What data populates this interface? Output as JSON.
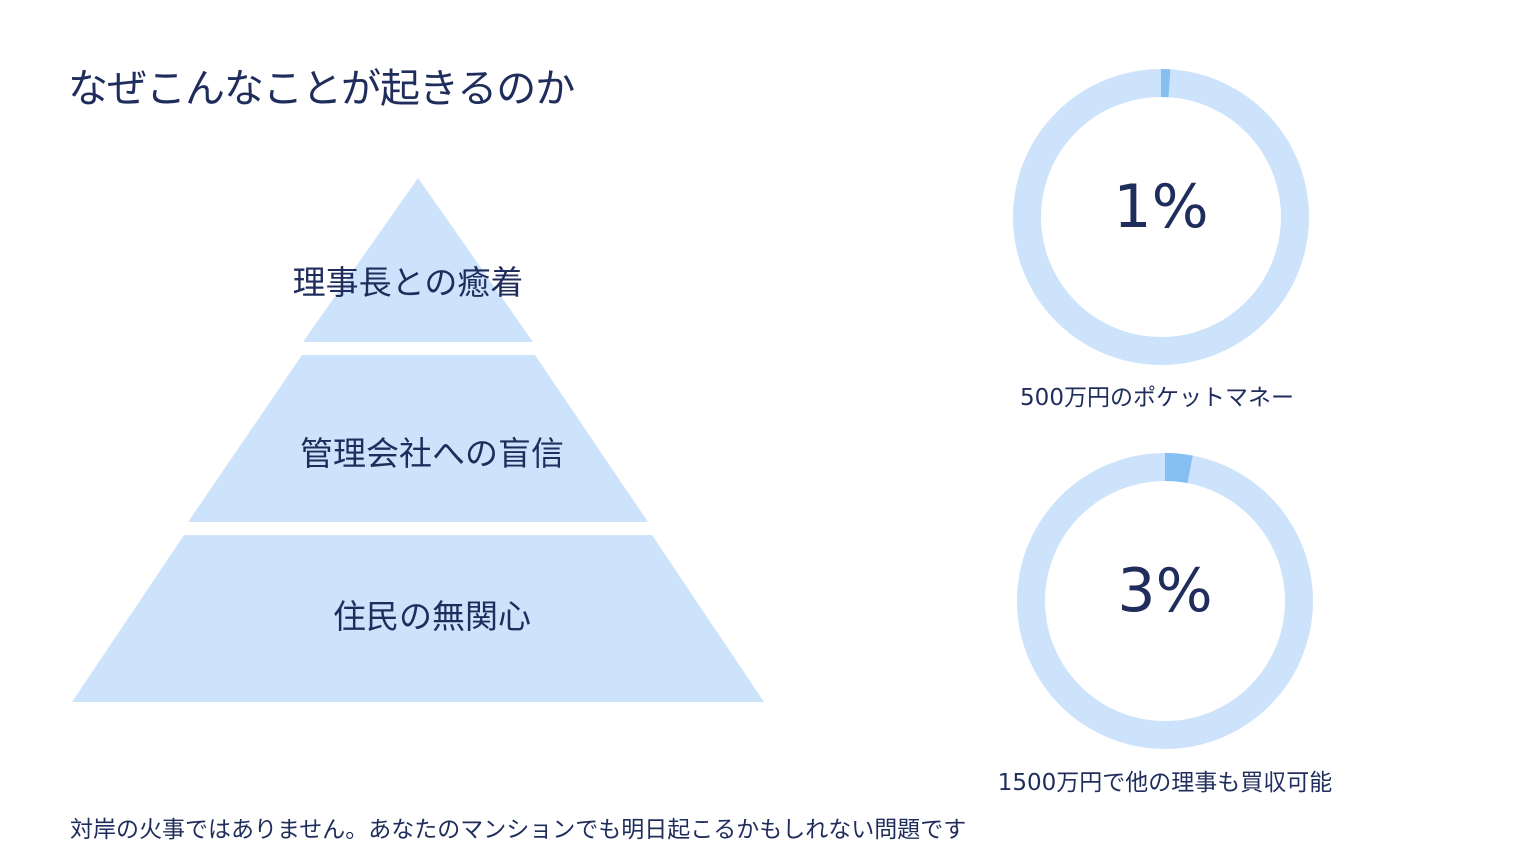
{
  "title": "なぜこんなことが起きるのか",
  "pyramid": {
    "tiers": [
      {
        "label": "理事長との癒着"
      },
      {
        "label": "管理会社への盲信"
      },
      {
        "label": "住民の無関心"
      }
    ],
    "fill_color": "#cde3fb"
  },
  "donuts": [
    {
      "value_label": "1%",
      "percent": 1,
      "caption": "500万円のポケットマネー"
    },
    {
      "value_label": "3%",
      "percent": 3,
      "caption": "1500万円で他の理事も買収可能"
    }
  ],
  "colors": {
    "text": "#1f2d5c",
    "ring_track": "#cde3fb",
    "ring_fill": "#86bff2"
  },
  "footer": "対岸の火事ではありません。あなたのマンションでも明日起こるかもしれない問題です"
}
